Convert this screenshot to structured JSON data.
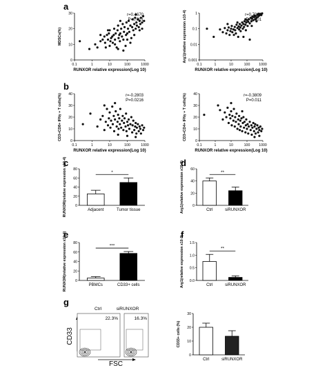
{
  "panel_labels": {
    "a": "a",
    "b": "b",
    "c": "c",
    "d": "d",
    "e": "e",
    "f": "f",
    "g": "g"
  },
  "chart_data": [
    {
      "id": "a-left",
      "type": "scatter",
      "xlabel": "RUNXOR relative expression(Log 10)",
      "ylabel": "MDSCs(%)",
      "xscale": "log",
      "xlim": [
        0.1,
        1000
      ],
      "ylim": [
        0,
        30
      ],
      "xticks": [
        "0.1",
        "1",
        "10",
        "100",
        "1000"
      ],
      "yticks": [
        "0",
        "10",
        "20",
        "30"
      ],
      "stats": [
        "r=0.4670",
        "P<0.001"
      ],
      "points": [
        [
          0.2,
          12
        ],
        [
          0.7,
          7
        ],
        [
          1.5,
          10
        ],
        [
          2,
          8
        ],
        [
          3,
          12
        ],
        [
          4,
          13
        ],
        [
          5,
          15
        ],
        [
          5.5,
          11
        ],
        [
          6,
          8
        ],
        [
          7,
          16
        ],
        [
          8,
          13
        ],
        [
          9,
          17
        ],
        [
          10,
          9
        ],
        [
          11,
          12
        ],
        [
          12,
          14
        ],
        [
          14,
          15
        ],
        [
          15,
          11
        ],
        [
          17,
          16
        ],
        [
          18,
          20
        ],
        [
          20,
          13
        ],
        [
          22,
          17
        ],
        [
          25,
          8
        ],
        [
          28,
          19
        ],
        [
          30,
          22
        ],
        [
          32,
          14
        ],
        [
          35,
          16
        ],
        [
          38,
          12
        ],
        [
          40,
          17
        ],
        [
          45,
          20
        ],
        [
          50,
          15
        ],
        [
          55,
          23
        ],
        [
          60,
          13
        ],
        [
          65,
          18
        ],
        [
          70,
          21
        ],
        [
          80,
          9
        ],
        [
          85,
          16
        ],
        [
          90,
          24
        ],
        [
          100,
          17
        ],
        [
          110,
          20
        ],
        [
          120,
          25
        ],
        [
          130,
          18
        ],
        [
          150,
          22
        ],
        [
          170,
          14
        ],
        [
          190,
          21
        ],
        [
          200,
          26
        ],
        [
          220,
          19
        ],
        [
          250,
          23
        ],
        [
          280,
          27
        ],
        [
          300,
          20
        ],
        [
          330,
          24
        ],
        [
          350,
          22
        ],
        [
          400,
          26
        ],
        [
          450,
          21
        ],
        [
          500,
          25
        ],
        [
          550,
          23
        ],
        [
          600,
          27
        ],
        [
          700,
          24
        ],
        [
          800,
          28
        ],
        [
          900,
          25
        ],
        [
          150,
          11
        ],
        [
          60,
          6
        ],
        [
          20,
          10
        ],
        [
          3,
          16
        ],
        [
          8,
          19
        ],
        [
          40,
          25
        ],
        [
          250,
          16
        ],
        [
          500,
          19
        ],
        [
          100,
          13
        ],
        [
          30,
          7
        ],
        [
          10,
          19
        ],
        [
          300,
          29
        ],
        [
          700,
          20
        ]
      ]
    },
    {
      "id": "a-right",
      "type": "scatter",
      "xlabel": "RUNXOR relative expression(Log 10)",
      "ylabel": "Arg1(relative expression x10-4)",
      "xscale": "log",
      "yscale": "log",
      "xlim": [
        0.1,
        1000
      ],
      "ylim": [
        0.001,
        1
      ],
      "xticks": [
        "0.1",
        "1",
        "10",
        "100",
        "1000"
      ],
      "yticks": [
        "0.001",
        "0.01",
        "0.1",
        "1"
      ],
      "stats": [
        "r=0.7060",
        "P<0.001"
      ],
      "points": [
        [
          0.3,
          0.1
        ],
        [
          0.8,
          0.03
        ],
        [
          2,
          0.09
        ],
        [
          3,
          0.06
        ],
        [
          4,
          0.11
        ],
        [
          5,
          0.05
        ],
        [
          6,
          0.08
        ],
        [
          7,
          0.12
        ],
        [
          8,
          0.04
        ],
        [
          9,
          0.07
        ],
        [
          10,
          0.1
        ],
        [
          11,
          0.15
        ],
        [
          12,
          0.06
        ],
        [
          14,
          0.09
        ],
        [
          15,
          0.04
        ],
        [
          17,
          0.13
        ],
        [
          18,
          0.08
        ],
        [
          20,
          0.05
        ],
        [
          22,
          0.18
        ],
        [
          25,
          0.11
        ],
        [
          28,
          0.03
        ],
        [
          30,
          0.14
        ],
        [
          32,
          0.09
        ],
        [
          35,
          0.2
        ],
        [
          38,
          0.12
        ],
        [
          40,
          0.07
        ],
        [
          45,
          0.16
        ],
        [
          50,
          0.25
        ],
        [
          55,
          0.1
        ],
        [
          60,
          0.2
        ],
        [
          65,
          0.13
        ],
        [
          70,
          0.3
        ],
        [
          80,
          0.18
        ],
        [
          85,
          0.08
        ],
        [
          90,
          0.25
        ],
        [
          100,
          0.35
        ],
        [
          110,
          0.15
        ],
        [
          120,
          0.28
        ],
        [
          130,
          0.4
        ],
        [
          150,
          0.22
        ],
        [
          170,
          0.5
        ],
        [
          190,
          0.3
        ],
        [
          200,
          0.45
        ],
        [
          220,
          0.6
        ],
        [
          250,
          0.35
        ],
        [
          280,
          0.55
        ],
        [
          300,
          0.7
        ],
        [
          330,
          0.4
        ],
        [
          350,
          0.65
        ],
        [
          400,
          0.5
        ],
        [
          450,
          0.8
        ],
        [
          500,
          0.6
        ],
        [
          550,
          0.9
        ],
        [
          600,
          0.7
        ],
        [
          700,
          0.85
        ],
        [
          800,
          0.75
        ],
        [
          900,
          0.95
        ],
        [
          150,
          0.02
        ],
        [
          60,
          0.03
        ],
        [
          25,
          0.25
        ],
        [
          400,
          0.3
        ],
        [
          200,
          0.15
        ],
        [
          80,
          0.4
        ],
        [
          6,
          0.2
        ]
      ]
    },
    {
      "id": "b-left",
      "type": "scatter",
      "xlabel": "RUNXOR relative expression(Log 10)",
      "ylabel": "CD3+CD8+ IFNγ + T cells(%)",
      "xscale": "log",
      "xlim": [
        0.1,
        1000
      ],
      "ylim": [
        0,
        40
      ],
      "xticks": [
        "0.1",
        "1",
        "10",
        "100",
        "1000"
      ],
      "yticks": [
        "0",
        "10",
        "20",
        "30",
        "40"
      ],
      "stats": [
        "r=-0.2803",
        "P=0.0216"
      ],
      "points": [
        [
          0.3,
          14
        ],
        [
          0.8,
          23
        ],
        [
          2,
          12
        ],
        [
          3,
          18
        ],
        [
          4,
          21
        ],
        [
          5,
          9
        ],
        [
          6,
          16
        ],
        [
          7,
          27
        ],
        [
          8,
          13
        ],
        [
          9,
          19
        ],
        [
          10,
          24
        ],
        [
          11,
          11
        ],
        [
          12,
          17
        ],
        [
          14,
          29
        ],
        [
          15,
          14
        ],
        [
          17,
          21
        ],
        [
          18,
          8
        ],
        [
          20,
          18
        ],
        [
          22,
          25
        ],
        [
          25,
          12
        ],
        [
          28,
          16
        ],
        [
          30,
          22
        ],
        [
          32,
          10
        ],
        [
          35,
          19
        ],
        [
          38,
          14
        ],
        [
          40,
          27
        ],
        [
          45,
          11
        ],
        [
          50,
          17
        ],
        [
          55,
          21
        ],
        [
          60,
          9
        ],
        [
          65,
          15
        ],
        [
          70,
          19
        ],
        [
          80,
          12
        ],
        [
          85,
          23
        ],
        [
          90,
          8
        ],
        [
          100,
          16
        ],
        [
          110,
          13
        ],
        [
          120,
          18
        ],
        [
          130,
          10
        ],
        [
          150,
          14
        ],
        [
          170,
          20
        ],
        [
          190,
          7
        ],
        [
          200,
          13
        ],
        [
          220,
          17
        ],
        [
          250,
          9
        ],
        [
          280,
          12
        ],
        [
          300,
          15
        ],
        [
          330,
          6
        ],
        [
          350,
          11
        ],
        [
          400,
          14
        ],
        [
          450,
          8
        ],
        [
          500,
          12
        ],
        [
          550,
          10
        ],
        [
          600,
          6
        ],
        [
          700,
          13
        ],
        [
          800,
          9
        ],
        [
          900,
          11
        ],
        [
          100,
          4
        ],
        [
          30,
          5
        ],
        [
          300,
          3
        ],
        [
          5,
          30
        ],
        [
          20,
          32
        ]
      ]
    },
    {
      "id": "b-right",
      "type": "scatter",
      "xlabel": "RUNXOR relative expression(Log 10)",
      "ylabel": "CD3+CD4+ IFNγ + T cells(%)",
      "xscale": "log",
      "xlim": [
        0.1,
        1000
      ],
      "ylim": [
        0,
        40
      ],
      "xticks": [
        "0.1",
        "1",
        "10",
        "100",
        "1000"
      ],
      "yticks": [
        "0",
        "10",
        "20",
        "30",
        "40"
      ],
      "stats": [
        "r=-0.3809",
        "P=0.011"
      ],
      "points": [
        [
          0.2,
          22
        ],
        [
          1.5,
          30
        ],
        [
          2,
          26
        ],
        [
          3,
          18
        ],
        [
          4,
          24
        ],
        [
          5,
          20
        ],
        [
          6,
          28
        ],
        [
          7,
          15
        ],
        [
          8,
          22
        ],
        [
          9,
          19
        ],
        [
          10,
          25
        ],
        [
          11,
          13
        ],
        [
          12,
          21
        ],
        [
          14,
          17
        ],
        [
          15,
          27
        ],
        [
          17,
          12
        ],
        [
          18,
          20
        ],
        [
          20,
          16
        ],
        [
          22,
          23
        ],
        [
          25,
          10
        ],
        [
          28,
          18
        ],
        [
          30,
          14
        ],
        [
          32,
          21
        ],
        [
          35,
          9
        ],
        [
          38,
          17
        ],
        [
          40,
          12
        ],
        [
          45,
          19
        ],
        [
          50,
          8
        ],
        [
          55,
          15
        ],
        [
          60,
          20
        ],
        [
          65,
          11
        ],
        [
          70,
          16
        ],
        [
          80,
          7
        ],
        [
          85,
          13
        ],
        [
          90,
          18
        ],
        [
          100,
          10
        ],
        [
          110,
          14
        ],
        [
          120,
          6
        ],
        [
          130,
          12
        ],
        [
          150,
          16
        ],
        [
          170,
          9
        ],
        [
          190,
          13
        ],
        [
          200,
          5
        ],
        [
          220,
          11
        ],
        [
          250,
          15
        ],
        [
          280,
          8
        ],
        [
          300,
          12
        ],
        [
          330,
          14
        ],
        [
          350,
          6
        ],
        [
          400,
          10
        ],
        [
          450,
          13
        ],
        [
          500,
          7
        ],
        [
          550,
          11
        ],
        [
          600,
          9
        ],
        [
          700,
          12
        ],
        [
          800,
          8
        ],
        [
          900,
          10
        ],
        [
          300,
          3
        ],
        [
          600,
          4
        ],
        [
          50,
          25
        ],
        [
          10,
          32
        ]
      ]
    },
    {
      "id": "c",
      "type": "bar",
      "ylabel": "RUNXOR(relative expression x10-4)",
      "categories": [
        "Adjacent",
        "Tumor tissue"
      ],
      "values": [
        25,
        50
      ],
      "errors": [
        8,
        10
      ],
      "fills": [
        "#ffffff",
        "#000000"
      ],
      "ylim": [
        0,
        80
      ],
      "yticks": [
        "0",
        "20",
        "40",
        "60",
        "80"
      ],
      "significance": "*"
    },
    {
      "id": "d",
      "type": "bar",
      "ylabel": "Arg1(relative expression x10-3)",
      "categories": [
        "Ctrl",
        "siRUNXOR"
      ],
      "values": [
        40,
        24
      ],
      "errors": [
        5,
        6
      ],
      "fills": [
        "#ffffff",
        "#000000"
      ],
      "ylim": [
        0,
        60
      ],
      "yticks": [
        "0",
        "20",
        "40",
        "60"
      ],
      "significance": "**"
    },
    {
      "id": "e",
      "type": "bar",
      "ylabel": "RUNXOR(relative expression x10-4)",
      "categories": [
        "PBMCs",
        "CD33+ cells"
      ],
      "values": [
        5,
        57
      ],
      "errors": [
        3,
        4
      ],
      "fills": [
        "#ffffff",
        "#000000"
      ],
      "ylim": [
        0,
        80
      ],
      "yticks": [
        "0",
        "20",
        "40",
        "60",
        "80"
      ],
      "significance": "***"
    },
    {
      "id": "f",
      "type": "bar",
      "ylabel": "Arg1(relative expression x10-3)",
      "categories": [
        "Ctrl",
        "siRUNXOR"
      ],
      "values": [
        0.75,
        0.12
      ],
      "errors": [
        0.28,
        0.06
      ],
      "fills": [
        "#ffffff",
        "#000000"
      ],
      "ylim": [
        0,
        1.5
      ],
      "yticks": [
        "0.0",
        "0.5",
        "1.0",
        "1.5"
      ],
      "significance": "**"
    },
    {
      "id": "g",
      "type": "bar",
      "ylabel": "CD33+ cells (%)",
      "categories": [
        "Ctrl",
        "siRUNXOR"
      ],
      "values": [
        20,
        13.5
      ],
      "errors": [
        3,
        4
      ],
      "fills": [
        "#ffffff",
        "#222222"
      ],
      "ylim": [
        0,
        30
      ],
      "yticks": [
        "0",
        "10",
        "20",
        "30"
      ]
    }
  ],
  "flow": {
    "y_label": "CD33",
    "x_label": "FSC",
    "panels": [
      {
        "title": "Ctrl",
        "percent": "22.3%"
      },
      {
        "title": "siRUNXOR",
        "percent": "16.3%"
      }
    ]
  }
}
